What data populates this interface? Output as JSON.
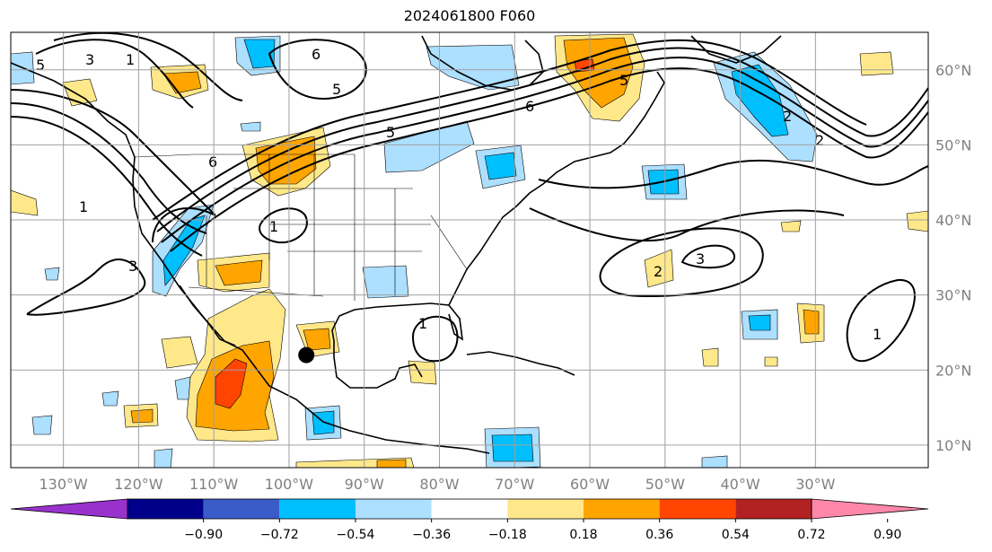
{
  "title": "2024061800 F060",
  "map": {
    "lon_range": [
      -137,
      -15
    ],
    "lat_range": [
      7,
      65
    ],
    "lon_ticks": [
      {
        "lon": -130,
        "label": "130°W"
      },
      {
        "lon": -120,
        "label": "120°W"
      },
      {
        "lon": -110,
        "label": "110°W"
      },
      {
        "lon": -100,
        "label": "100°W"
      },
      {
        "lon": -90,
        "label": "90°W"
      },
      {
        "lon": -80,
        "label": "80°W"
      },
      {
        "lon": -70,
        "label": "70°W"
      },
      {
        "lon": -60,
        "label": "60°W"
      },
      {
        "lon": -50,
        "label": "50°W"
      },
      {
        "lon": -40,
        "label": "40°W"
      },
      {
        "lon": -30,
        "label": "30°W"
      }
    ],
    "lat_ticks": [
      {
        "lat": 60,
        "label": "60°N"
      },
      {
        "lat": 50,
        "label": "50°N"
      },
      {
        "lat": 40,
        "label": "40°N"
      },
      {
        "lat": 30,
        "label": "30°N"
      },
      {
        "lat": 20,
        "label": "20°N"
      },
      {
        "lat": 10,
        "label": "10°N"
      }
    ],
    "marker": {
      "lon": -97.7,
      "lat": 22.0,
      "name": "point-marker"
    }
  },
  "colorbar": {
    "colors": [
      "#9932CC",
      "#00008B",
      "#3A5CC8",
      "#00BFFF",
      "#ADDFFF",
      "#FFFFFF",
      "#FFE88A",
      "#FFA500",
      "#FF4500",
      "#B22222",
      "#FF88AA"
    ],
    "tick_labels": [
      "−0.90",
      "−0.72",
      "−0.54",
      "−0.36",
      "−0.18",
      "0.18",
      "0.36",
      "0.54",
      "0.72",
      "0.90"
    ]
  },
  "contour_labels": [
    "5",
    "3",
    "1",
    "6",
    "5",
    "5",
    "6",
    "1",
    "1",
    "3",
    "1",
    "6",
    "5",
    "2",
    "3",
    "2",
    "1",
    "2"
  ]
}
